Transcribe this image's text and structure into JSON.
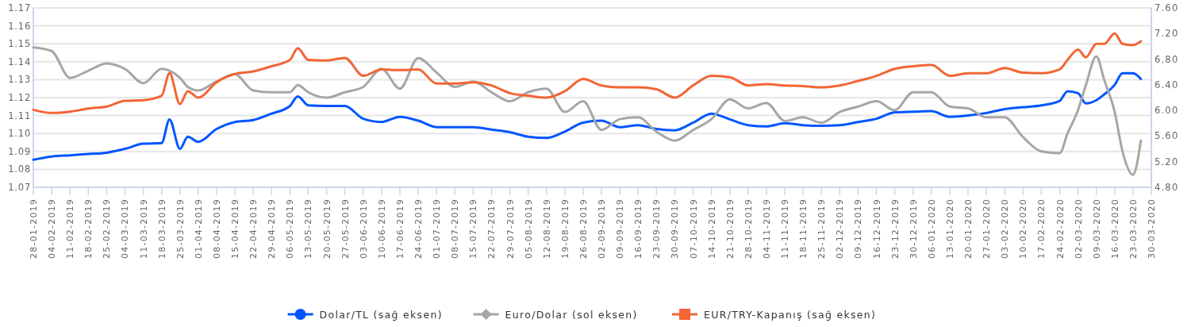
{
  "chart_data": {
    "type": "line",
    "x": [
      "2019-01-28",
      "2019-02-04",
      "2019-02-11",
      "2019-02-18",
      "2019-02-25",
      "2019-03-04",
      "2019-03-11",
      "2019-03-18",
      "2019-03-21",
      "2019-03-25",
      "2019-03-28",
      "2019-04-01",
      "2019-04-08",
      "2019-04-15",
      "2019-04-22",
      "2019-04-29",
      "2019-05-06",
      "2019-05-09",
      "2019-05-13",
      "2019-05-20",
      "2019-05-27",
      "2019-06-03",
      "2019-06-10",
      "2019-06-17",
      "2019-06-24",
      "2019-07-01",
      "2019-07-08",
      "2019-07-15",
      "2019-07-22",
      "2019-07-29",
      "2019-08-05",
      "2019-08-12",
      "2019-08-19",
      "2019-08-26",
      "2019-09-02",
      "2019-09-09",
      "2019-09-16",
      "2019-09-23",
      "2019-09-30",
      "2019-10-07",
      "2019-10-14",
      "2019-10-21",
      "2019-10-28",
      "2019-11-04",
      "2019-11-11",
      "2019-11-18",
      "2019-11-25",
      "2019-12-02",
      "2019-12-09",
      "2019-12-16",
      "2019-12-23",
      "2019-12-30",
      "2020-01-06",
      "2020-01-13",
      "2020-01-20",
      "2020-01-27",
      "2020-02-03",
      "2020-02-10",
      "2020-02-17",
      "2020-02-24",
      "2020-02-27",
      "2020-03-02",
      "2020-03-05",
      "2020-03-09",
      "2020-03-12",
      "2020-03-16",
      "2020-03-19",
      "2020-03-23",
      "2020-03-26"
    ],
    "series": [
      {
        "name": "Dolar/TL (sağ eksen)",
        "color": "#0055ff",
        "axis": "y2",
        "values": [
          5.23,
          5.28,
          5.3,
          5.32,
          5.34,
          5.4,
          5.48,
          5.49,
          5.86,
          5.4,
          5.59,
          5.51,
          5.71,
          5.82,
          5.85,
          5.95,
          6.07,
          6.22,
          6.08,
          6.07,
          6.07,
          5.87,
          5.82,
          5.9,
          5.84,
          5.74,
          5.74,
          5.74,
          5.7,
          5.66,
          5.59,
          5.57,
          5.67,
          5.81,
          5.84,
          5.74,
          5.77,
          5.71,
          5.69,
          5.81,
          5.95,
          5.86,
          5.77,
          5.75,
          5.8,
          5.77,
          5.76,
          5.77,
          5.82,
          5.87,
          5.97,
          5.98,
          5.99,
          5.9,
          5.92,
          5.96,
          6.02,
          6.05,
          6.08,
          6.15,
          6.3,
          6.27,
          6.11,
          6.16,
          6.25,
          6.4,
          6.58,
          6.58,
          6.49
        ]
      },
      {
        "name": "Euro/Dolar (sol eksen)",
        "color": "#a6a6a6",
        "values": [
          1.148,
          1.146,
          1.131,
          1.135,
          1.139,
          1.136,
          1.128,
          1.136,
          1.135,
          1.131,
          1.126,
          1.124,
          1.129,
          1.133,
          1.124,
          1.123,
          1.123,
          1.127,
          1.123,
          1.12,
          1.123,
          1.126,
          1.136,
          1.125,
          1.142,
          1.134,
          1.126,
          1.129,
          1.123,
          1.118,
          1.123,
          1.125,
          1.112,
          1.118,
          1.102,
          1.108,
          1.109,
          1.101,
          1.096,
          1.102,
          1.108,
          1.119,
          1.114,
          1.117,
          1.107,
          1.109,
          1.106,
          1.112,
          1.115,
          1.118,
          1.113,
          1.123,
          1.123,
          1.115,
          1.114,
          1.109,
          1.109,
          1.098,
          1.09,
          1.089,
          1.1,
          1.113,
          1.127,
          1.143,
          1.13,
          1.112,
          1.09,
          1.077,
          1.096
        ]
      },
      {
        "name": "EUR/TRY-Kapanış (sağ eksen)",
        "color": "#f26535",
        "axis": "y2",
        "values": [
          6.01,
          5.96,
          5.98,
          6.03,
          6.06,
          6.15,
          6.16,
          6.23,
          6.58,
          6.1,
          6.3,
          6.2,
          6.44,
          6.57,
          6.61,
          6.69,
          6.79,
          6.97,
          6.79,
          6.78,
          6.82,
          6.54,
          6.64,
          6.63,
          6.64,
          6.42,
          6.42,
          6.44,
          6.39,
          6.27,
          6.23,
          6.2,
          6.3,
          6.49,
          6.39,
          6.36,
          6.36,
          6.33,
          6.2,
          6.39,
          6.54,
          6.52,
          6.39,
          6.41,
          6.39,
          6.38,
          6.36,
          6.39,
          6.46,
          6.54,
          6.65,
          6.69,
          6.71,
          6.54,
          6.58,
          6.58,
          6.66,
          6.59,
          6.58,
          6.64,
          6.79,
          6.95,
          6.83,
          7.04,
          7.04,
          7.2,
          7.04,
          7.02,
          7.08
        ]
      }
    ],
    "xlim": [
      "2019-01-28",
      "2020-03-30"
    ],
    "xticks": [
      {
        "value": "2019-01-28",
        "label": "28-01-2019"
      },
      {
        "value": "2019-02-04",
        "label": "04-02-2019"
      },
      {
        "value": "2019-02-11",
        "label": "11-02-2019"
      },
      {
        "value": "2019-02-18",
        "label": "18-02-2019"
      },
      {
        "value": "2019-02-25",
        "label": "25-02-2019"
      },
      {
        "value": "2019-03-04",
        "label": "04-03-2019"
      },
      {
        "value": "2019-03-11",
        "label": "11-03-2019"
      },
      {
        "value": "2019-03-18",
        "label": "18-03-2019"
      },
      {
        "value": "2019-03-25",
        "label": "25-03-2019"
      },
      {
        "value": "2019-04-01",
        "label": "01-04-2019"
      },
      {
        "value": "2019-04-08",
        "label": "08-04-2019"
      },
      {
        "value": "2019-04-15",
        "label": "15-04-2019"
      },
      {
        "value": "2019-04-22",
        "label": "22-04-2019"
      },
      {
        "value": "2019-04-29",
        "label": "29-04-2019"
      },
      {
        "value": "2019-05-06",
        "label": "06-05-2019"
      },
      {
        "value": "2019-05-13",
        "label": "13-05-2019"
      },
      {
        "value": "2019-05-20",
        "label": "20-05-2019"
      },
      {
        "value": "2019-05-27",
        "label": "27-05-2019"
      },
      {
        "value": "2019-06-03",
        "label": "03-06-2019"
      },
      {
        "value": "2019-06-10",
        "label": "10-06-2019"
      },
      {
        "value": "2019-06-17",
        "label": "17-06-2019"
      },
      {
        "value": "2019-06-24",
        "label": "24-06-2019"
      },
      {
        "value": "2019-07-01",
        "label": "01-07-2019"
      },
      {
        "value": "2019-07-08",
        "label": "08-07-2019"
      },
      {
        "value": "2019-07-15",
        "label": "15-07-2019"
      },
      {
        "value": "2019-07-22",
        "label": "22-07-2019"
      },
      {
        "value": "2019-07-29",
        "label": "29-07-2019"
      },
      {
        "value": "2019-08-05",
        "label": "05-08-2019"
      },
      {
        "value": "2019-08-12",
        "label": "12-08-2019"
      },
      {
        "value": "2019-08-19",
        "label": "19-08-2019"
      },
      {
        "value": "2019-08-26",
        "label": "26-08-2019"
      },
      {
        "value": "2019-09-02",
        "label": "02-09-2019"
      },
      {
        "value": "2019-09-09",
        "label": "09-09-2019"
      },
      {
        "value": "2019-09-16",
        "label": "16-09-2019"
      },
      {
        "value": "2019-09-23",
        "label": "23-09-2019"
      },
      {
        "value": "2019-09-30",
        "label": "30-09-2019"
      },
      {
        "value": "2019-10-07",
        "label": "07-10-2019"
      },
      {
        "value": "2019-10-14",
        "label": "14-10-2019"
      },
      {
        "value": "2019-10-21",
        "label": "21-10-2019"
      },
      {
        "value": "2019-10-28",
        "label": "28-10-2019"
      },
      {
        "value": "2019-11-04",
        "label": "04-11-2019"
      },
      {
        "value": "2019-11-11",
        "label": "11-11-2019"
      },
      {
        "value": "2019-11-18",
        "label": "18-11-2019"
      },
      {
        "value": "2019-11-25",
        "label": "25-11-2019"
      },
      {
        "value": "2019-12-02",
        "label": "02-12-2019"
      },
      {
        "value": "2019-12-09",
        "label": "09-12-2019"
      },
      {
        "value": "2019-12-16",
        "label": "16-12-2019"
      },
      {
        "value": "2019-12-23",
        "label": "23-12-2019"
      },
      {
        "value": "2019-12-30",
        "label": "30-12-2019"
      },
      {
        "value": "2020-01-06",
        "label": "06-01-2020"
      },
      {
        "value": "2020-01-13",
        "label": "13-01-2020"
      },
      {
        "value": "2020-01-20",
        "label": "20-01-2020"
      },
      {
        "value": "2020-01-27",
        "label": "27-01-2020"
      },
      {
        "value": "2020-02-03",
        "label": "03-02-2020"
      },
      {
        "value": "2020-02-10",
        "label": "10-02-2020"
      },
      {
        "value": "2020-02-17",
        "label": "17-02-2020"
      },
      {
        "value": "2020-02-24",
        "label": "24-02-2020"
      },
      {
        "value": "2020-03-02",
        "label": "02-03-2020"
      },
      {
        "value": "2020-03-09",
        "label": "09-03-2020"
      },
      {
        "value": "2020-03-16",
        "label": "16-03-2020"
      },
      {
        "value": "2020-03-23",
        "label": "23-03-2020"
      },
      {
        "value": "2020-03-30",
        "label": "30-03-2020"
      }
    ],
    "ylim": [
      1.07,
      1.17
    ],
    "yticks": [
      {
        "value": 1.07,
        "label": "1.07"
      },
      {
        "value": 1.08,
        "label": "1.08"
      },
      {
        "value": 1.09,
        "label": "1.09"
      },
      {
        "value": 1.1,
        "label": "1.10"
      },
      {
        "value": 1.11,
        "label": "1.11"
      },
      {
        "value": 1.12,
        "label": "1.12"
      },
      {
        "value": 1.13,
        "label": "1.13"
      },
      {
        "value": 1.14,
        "label": "1.14"
      },
      {
        "value": 1.15,
        "label": "1.15"
      },
      {
        "value": 1.16,
        "label": "1.16"
      },
      {
        "value": 1.17,
        "label": "1.17"
      }
    ],
    "y2lim": [
      4.8,
      7.6
    ],
    "y2ticks": [
      {
        "value": 4.8,
        "label": "4.80"
      },
      {
        "value": 5.2,
        "label": "5.20"
      },
      {
        "value": 5.6,
        "label": "5.60"
      },
      {
        "value": 6.0,
        "label": "6.00"
      },
      {
        "value": 6.4,
        "label": "6.40"
      },
      {
        "value": 6.8,
        "label": "6.80"
      },
      {
        "value": 7.2,
        "label": "7.20"
      },
      {
        "value": 7.6,
        "label": "7.60"
      }
    ],
    "grid": "y",
    "legend": "bottom",
    "marker": "none"
  }
}
